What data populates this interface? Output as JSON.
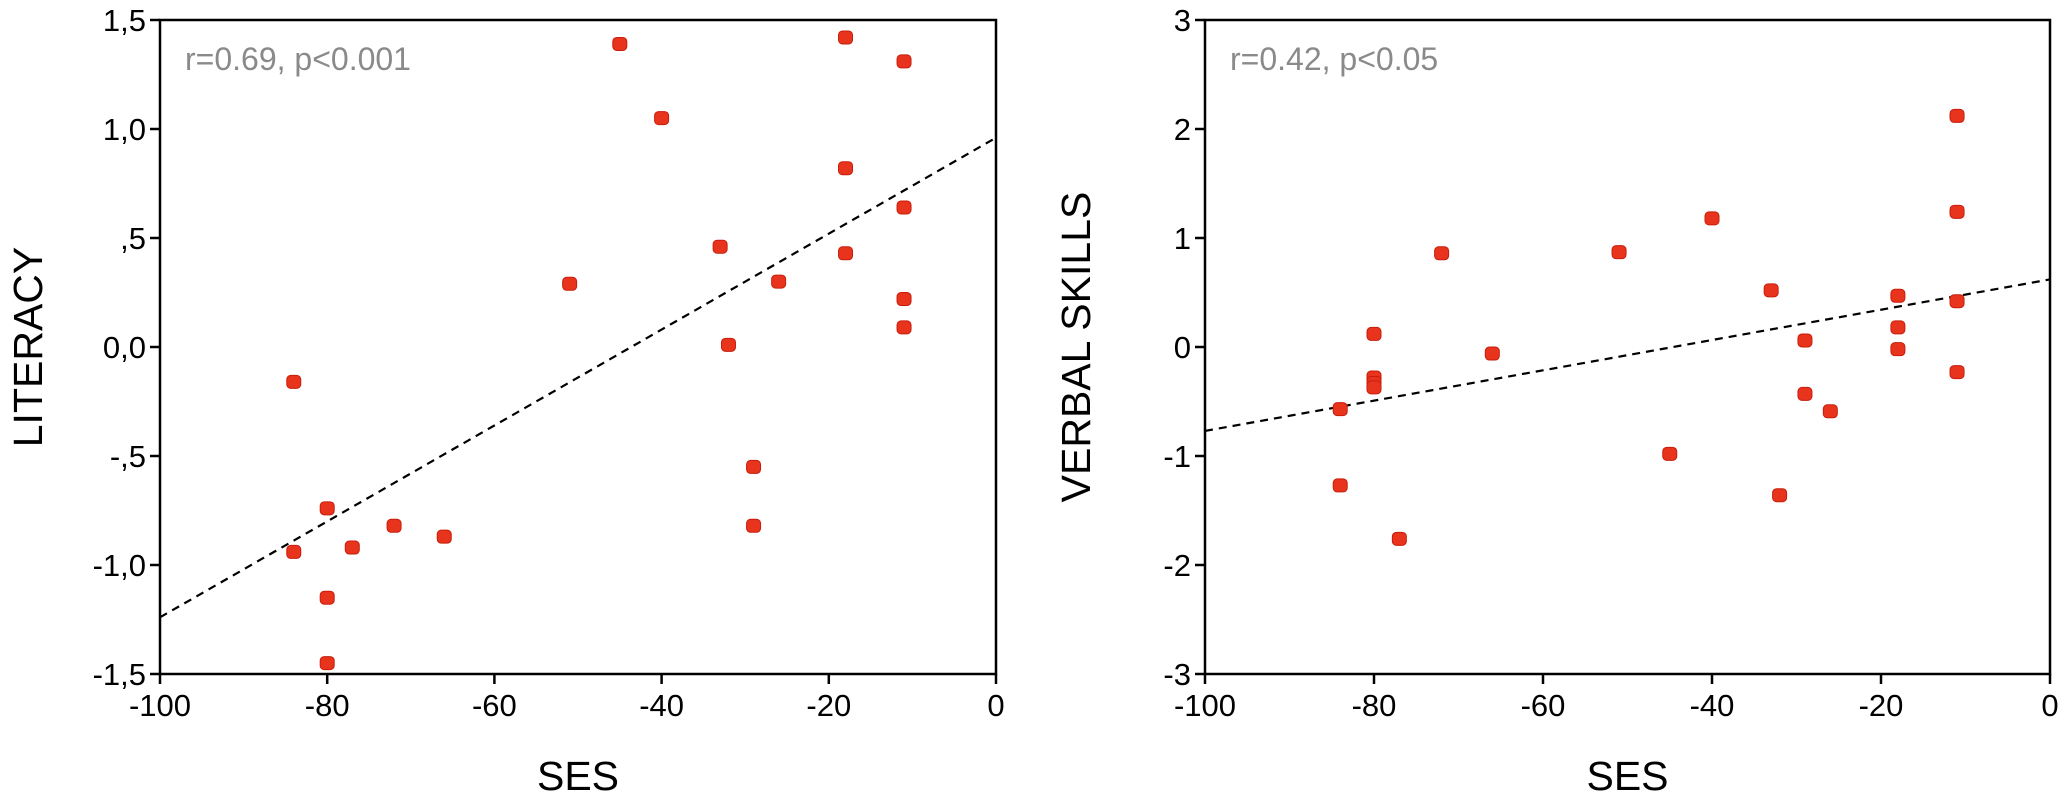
{
  "chart_data": [
    {
      "type": "scatter",
      "xlabel": "SES",
      "ylabel": "LITERACY",
      "annotation": "r=0.69, p<0.001",
      "xlim": [
        -100,
        0
      ],
      "ylim": [
        -1.5,
        1.5
      ],
      "x_ticks": [
        -100,
        -80,
        -60,
        -40,
        -20,
        0
      ],
      "x_tick_labels": [
        "-100",
        "-80",
        "-60",
        "-40",
        "-20",
        "0"
      ],
      "y_ticks": [
        1.5,
        1.0,
        0.5,
        0.0,
        -0.5,
        -1.0,
        -1.5
      ],
      "y_tick_labels": [
        "1,5",
        "1,0",
        ",5",
        "0,0",
        "-,5",
        "-1,0",
        "-1,5"
      ],
      "grid": false,
      "fit_line": {
        "x": [
          -100,
          0
        ],
        "y": [
          -1.24,
          0.96
        ]
      },
      "points": [
        {
          "x": -84,
          "y": -0.16
        },
        {
          "x": -84,
          "y": -0.94
        },
        {
          "x": -80,
          "y": -0.74
        },
        {
          "x": -80,
          "y": -1.15
        },
        {
          "x": -80,
          "y": -1.45
        },
        {
          "x": -77,
          "y": -0.92
        },
        {
          "x": -72,
          "y": -0.82
        },
        {
          "x": -66,
          "y": -0.87
        },
        {
          "x": -51,
          "y": 0.29
        },
        {
          "x": -45,
          "y": 1.39
        },
        {
          "x": -40,
          "y": 1.05
        },
        {
          "x": -33,
          "y": 0.46
        },
        {
          "x": -32,
          "y": 0.01
        },
        {
          "x": -29,
          "y": -0.55
        },
        {
          "x": -29,
          "y": -0.82
        },
        {
          "x": -26,
          "y": 0.3
        },
        {
          "x": -18,
          "y": 1.42
        },
        {
          "x": -18,
          "y": 0.82
        },
        {
          "x": -18,
          "y": 0.43
        },
        {
          "x": -11,
          "y": 1.31
        },
        {
          "x": -11,
          "y": 0.64
        },
        {
          "x": -11,
          "y": 0.22
        },
        {
          "x": -11,
          "y": 0.09
        }
      ]
    },
    {
      "type": "scatter",
      "xlabel": "SES",
      "ylabel": "VERBAL SKILLS",
      "annotation": "r=0.42, p<0.05",
      "xlim": [
        -100,
        0
      ],
      "ylim": [
        -3,
        3
      ],
      "x_ticks": [
        -100,
        -80,
        -60,
        -40,
        -20,
        0
      ],
      "x_tick_labels": [
        "-100",
        "-80",
        "-60",
        "-40",
        "-20",
        "0"
      ],
      "y_ticks": [
        3,
        2,
        1,
        0,
        -1,
        -2,
        -3
      ],
      "y_tick_labels": [
        "3",
        "2",
        "1",
        "0",
        "-1",
        "-2",
        "-3"
      ],
      "grid": false,
      "fit_line": {
        "x": [
          -100,
          0
        ],
        "y": [
          -0.77,
          0.62
        ]
      },
      "points": [
        {
          "x": -84,
          "y": -0.57
        },
        {
          "x": -84,
          "y": -1.27
        },
        {
          "x": -80,
          "y": 0.12
        },
        {
          "x": -80,
          "y": -0.28
        },
        {
          "x": -80,
          "y": -0.33
        },
        {
          "x": -80,
          "y": -0.37
        },
        {
          "x": -77,
          "y": -1.76
        },
        {
          "x": -72,
          "y": 0.86
        },
        {
          "x": -66,
          "y": -0.06
        },
        {
          "x": -51,
          "y": 0.87
        },
        {
          "x": -45,
          "y": -0.98
        },
        {
          "x": -40,
          "y": 1.18
        },
        {
          "x": -33,
          "y": 0.52
        },
        {
          "x": -32,
          "y": -1.36
        },
        {
          "x": -29,
          "y": 0.06
        },
        {
          "x": -29,
          "y": -0.43
        },
        {
          "x": -26,
          "y": -0.59
        },
        {
          "x": -18,
          "y": 0.47
        },
        {
          "x": -18,
          "y": 0.18
        },
        {
          "x": -18,
          "y": -0.02
        },
        {
          "x": -11,
          "y": 2.12
        },
        {
          "x": -11,
          "y": 1.24
        },
        {
          "x": -11,
          "y": 0.42
        },
        {
          "x": -11,
          "y": -0.23
        }
      ]
    }
  ]
}
